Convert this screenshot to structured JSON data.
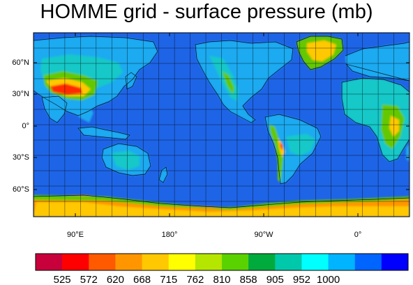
{
  "title": "HOMME grid - surface pressure (mb)",
  "map": {
    "lat_labels": [
      "60°N",
      "30°N",
      "0°",
      "30°S",
      "60°S"
    ],
    "lon_labels": [
      "90°E",
      "180°",
      "90°W",
      "0°"
    ]
  },
  "colorbar": {
    "labels": [
      "525",
      "572",
      "620",
      "668",
      "715",
      "762",
      "810",
      "858",
      "905",
      "952",
      "1000"
    ],
    "colors": [
      "#c8003c",
      "#ff0000",
      "#ff5a00",
      "#ff9600",
      "#ffc800",
      "#ffff00",
      "#b4e600",
      "#5ad200",
      "#00aa3c",
      "#00c8aa",
      "#00ffff",
      "#00b4ff",
      "#0064ff",
      "#0000ff"
    ]
  },
  "palette": {
    "ocean": "#1e64e6",
    "land_low": "#1eaaf0",
    "land_mid": "#19c8c8",
    "highland": "#64c800",
    "mountain": "#ffc800",
    "peak": "#ff2a00",
    "ice": "#ff9600"
  }
}
